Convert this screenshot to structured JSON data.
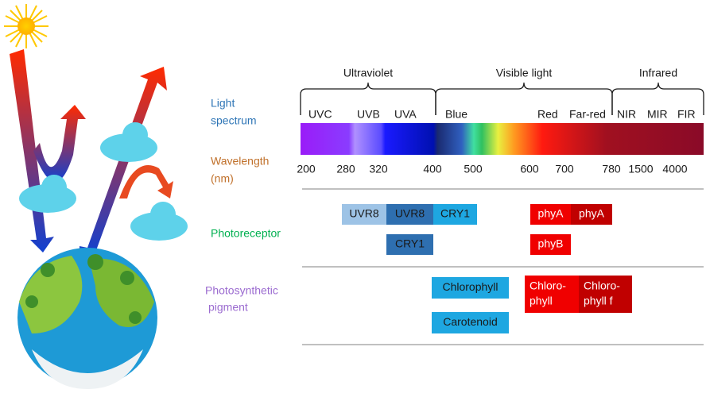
{
  "labels": {
    "light_spectrum": [
      "Light",
      "spectrum"
    ],
    "wavelength": [
      "Wavelength",
      "(nm)"
    ],
    "photoreceptor": "Photoreceptor",
    "photosynthetic_pigment": [
      "Photosynthetic",
      "pigment"
    ]
  },
  "regions": [
    "Ultraviolet",
    "Visible light",
    "Infrared"
  ],
  "bands": [
    "UVC",
    "UVB",
    "UVA",
    "Blue",
    "Red",
    "Far-red",
    "NIR",
    "MIR",
    "FIR"
  ],
  "wavelengths": [
    200,
    280,
    320,
    400,
    500,
    600,
    700,
    780,
    1500,
    4000
  ],
  "photoreceptors": [
    "UVR8",
    "UVR8",
    "CRY1",
    "CRY1",
    "phyA",
    "phyA",
    "phyB"
  ],
  "pigments": [
    [
      "Chlorophyll"
    ],
    [
      "Carotenoid"
    ],
    [
      "Chloro-",
      "phyll"
    ],
    [
      "Chloro-",
      "phyll f"
    ]
  ]
}
